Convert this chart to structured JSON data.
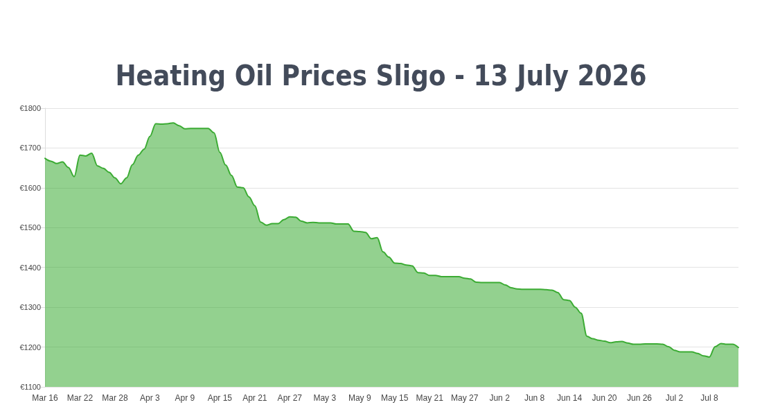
{
  "chart_data": {
    "type": "area",
    "title": "Heating Oil Prices Sligo - 13 July 2026",
    "categories": [
      "Mar 16",
      null,
      null,
      null,
      null,
      null,
      "Mar 22",
      null,
      null,
      null,
      null,
      null,
      "Mar 28",
      null,
      null,
      null,
      null,
      null,
      "Apr 3",
      null,
      null,
      null,
      null,
      null,
      "Apr 9",
      null,
      null,
      null,
      null,
      null,
      "Apr 15",
      null,
      null,
      null,
      null,
      null,
      "Apr 21",
      null,
      null,
      null,
      null,
      null,
      "Apr 27",
      null,
      null,
      null,
      null,
      null,
      "May 3",
      null,
      null,
      null,
      null,
      null,
      "May 9",
      null,
      null,
      null,
      null,
      null,
      "May 15",
      null,
      null,
      null,
      null,
      null,
      "May 21",
      null,
      null,
      null,
      null,
      null,
      "May 27",
      null,
      null,
      null,
      null,
      null,
      "Jun 2",
      null,
      null,
      null,
      null,
      null,
      "Jun 8",
      null,
      null,
      null,
      null,
      null,
      "Jun 14",
      null,
      null,
      null,
      null,
      null,
      "Jun 20",
      null,
      null,
      null,
      null,
      null,
      "Jun 26",
      null,
      null,
      null,
      null,
      null,
      "Jul 2",
      null,
      null,
      null,
      null,
      null,
      "Jul 8",
      null,
      null,
      null,
      null,
      null
    ],
    "series": [
      {
        "color": "#3bab33",
        "values": [
          1674,
          1667,
          1661,
          1665,
          1651,
          1628,
          1682,
          1680,
          1687,
          1655,
          1649,
          1639,
          1625,
          1610,
          1625,
          1658,
          1682,
          1697,
          1729,
          1761,
          1760,
          1761,
          1763,
          1756,
          1748,
          1749,
          1749,
          1749,
          1749,
          1738,
          1689,
          1657,
          1631,
          1602,
          1600,
          1577,
          1555,
          1514,
          1506,
          1510,
          1510,
          1520,
          1527,
          1526,
          1516,
          1512,
          1513,
          1512,
          1512,
          1512,
          1509,
          1509,
          1509,
          1491,
          1490,
          1488,
          1472,
          1475,
          1439,
          1426,
          1411,
          1410,
          1406,
          1404,
          1387,
          1386,
          1380,
          1380,
          1377,
          1377,
          1377,
          1377,
          1373,
          1371,
          1363,
          1362,
          1362,
          1362,
          1362,
          1356,
          1349,
          1346,
          1345,
          1345,
          1345,
          1345,
          1344,
          1343,
          1337,
          1319,
          1317,
          1300,
          1285,
          1227,
          1221,
          1217,
          1215,
          1211,
          1213,
          1214,
          1210,
          1207,
          1207,
          1208,
          1208,
          1208,
          1207,
          1201,
          1192,
          1188,
          1188,
          1188,
          1184,
          1178,
          1175,
          1201,
          1209,
          1207,
          1207,
          1199
        ]
      }
    ],
    "ylim": [
      1100,
      1800
    ],
    "yticks": [
      {
        "value": 1100,
        "label": "€1100"
      },
      {
        "value": 1200,
        "label": "€1200"
      },
      {
        "value": 1300,
        "label": "€1300"
      },
      {
        "value": 1400,
        "label": "€1400"
      },
      {
        "value": 1500,
        "label": "€1500"
      },
      {
        "value": 1600,
        "label": "€1600"
      },
      {
        "value": 1700,
        "label": "€1700"
      },
      {
        "value": 1800,
        "label": "€1800"
      }
    ],
    "grid": "y"
  }
}
